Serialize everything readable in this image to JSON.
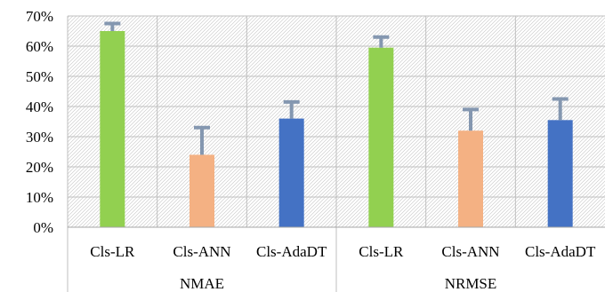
{
  "chart_data": {
    "type": "bar",
    "yaxis": {
      "min": 0,
      "max": 70,
      "step": 10,
      "tick_labels": [
        "0%",
        "10%",
        "20%",
        "30%",
        "40%",
        "50%",
        "60%",
        "70%"
      ]
    },
    "groups": [
      {
        "label": "NMAE",
        "bars": [
          {
            "category": "Cls-LR",
            "value": 65,
            "error": 2.5,
            "color": "#92d050"
          },
          {
            "category": "Cls-ANN",
            "value": 24,
            "error": 9,
            "color": "#f4b183"
          },
          {
            "category": "Cls-AdaDT",
            "value": 36,
            "error": 5.5,
            "color": "#4472c4"
          }
        ]
      },
      {
        "label": "NRMSE",
        "bars": [
          {
            "category": "Cls-LR",
            "value": 59.5,
            "error": 3.5,
            "color": "#92d050"
          },
          {
            "category": "Cls-ANN",
            "value": 32,
            "error": 7,
            "color": "#f4b183"
          },
          {
            "category": "Cls-AdaDT",
            "value": 35.5,
            "error": 7,
            "color": "#4472c4"
          }
        ]
      }
    ],
    "error_bar_color": "#8497b0",
    "grid": true,
    "legend": "none"
  }
}
